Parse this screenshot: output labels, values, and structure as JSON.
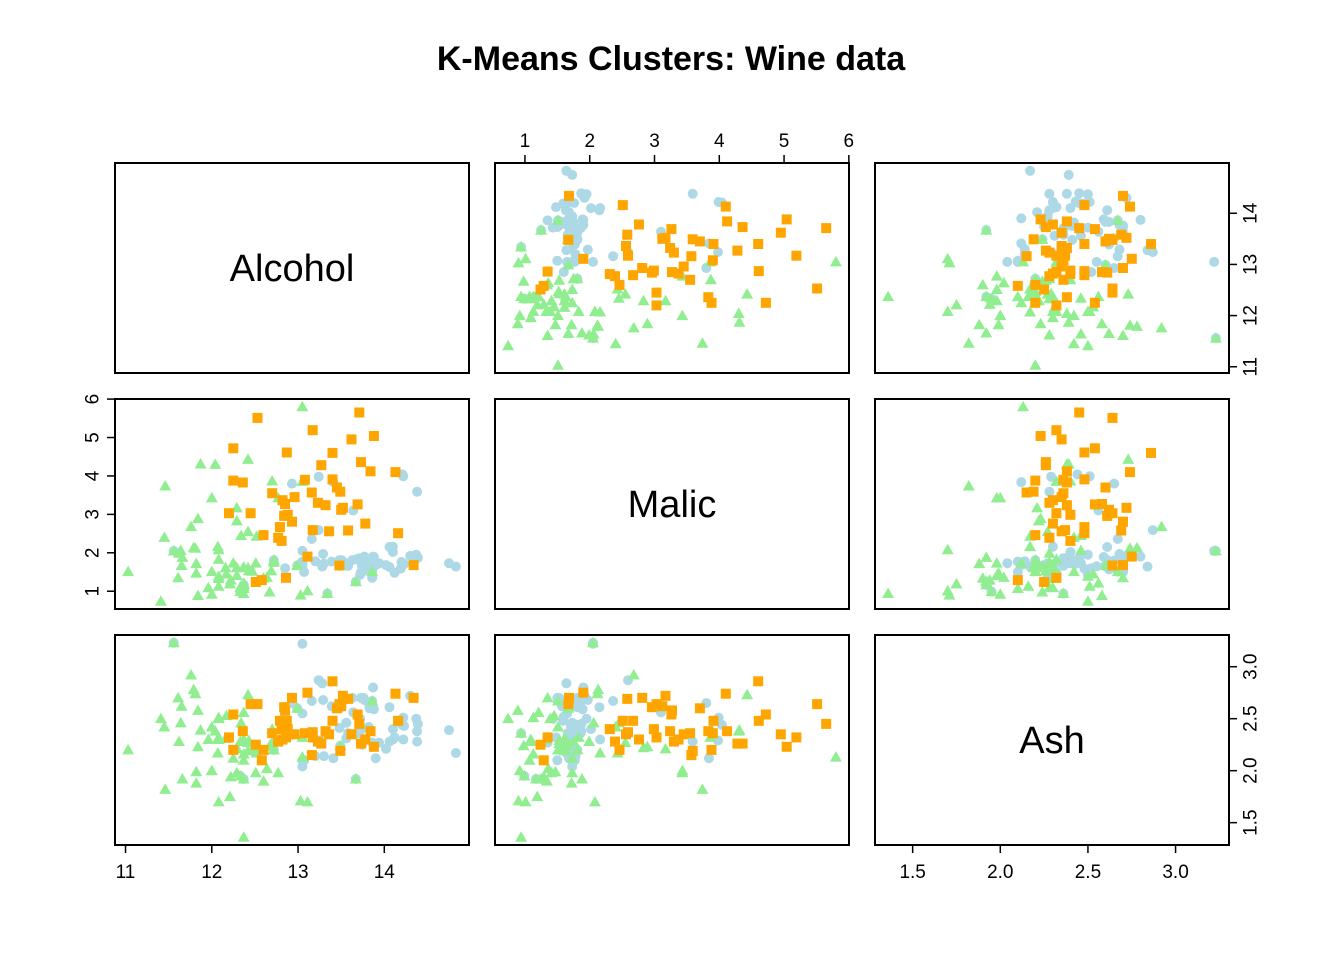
{
  "chart_data": {
    "type": "scatter",
    "title": "K-Means Clusters: Wine data",
    "variables": [
      "Alcohol",
      "Malic",
      "Ash"
    ],
    "ranges": {
      "Alcohol": [
        11.03,
        14.83
      ],
      "Malic": [
        0.74,
        5.8
      ],
      "Ash": [
        1.36,
        3.23
      ]
    },
    "ticks": {
      "Alcohol": [
        "11",
        "12",
        "13",
        "14"
      ],
      "Malic": [
        "1",
        "2",
        "3",
        "4",
        "5",
        "6"
      ],
      "Ash": [
        "1.5",
        "2.0",
        "2.5",
        "3.0"
      ]
    },
    "colors": {
      "cluster_1": "#add8e6",
      "cluster_2": "#90ee90",
      "cluster_3": "#ffa500"
    },
    "markers": {
      "cluster_1": "circle",
      "cluster_2": "triangle",
      "cluster_3": "square"
    },
    "clusters": [
      {
        "id": 1,
        "points": [
          [
            14.23,
            1.71,
            2.43
          ],
          [
            13.2,
            1.78,
            2.14
          ],
          [
            13.16,
            2.36,
            2.67
          ],
          [
            14.37,
            1.95,
            2.5
          ],
          [
            13.24,
            2.59,
            2.87
          ],
          [
            14.2,
            1.76,
            2.45
          ],
          [
            14.39,
            1.87,
            2.45
          ],
          [
            14.06,
            2.15,
            2.61
          ],
          [
            14.83,
            1.64,
            2.17
          ],
          [
            13.86,
            1.35,
            2.27
          ],
          [
            14.1,
            2.16,
            2.3
          ],
          [
            14.12,
            1.48,
            2.32
          ],
          [
            13.75,
            1.73,
            2.41
          ],
          [
            14.75,
            1.73,
            2.39
          ],
          [
            14.38,
            1.87,
            2.38
          ],
          [
            13.63,
            1.81,
            2.7
          ],
          [
            14.3,
            1.92,
            2.72
          ],
          [
            13.83,
            1.57,
            2.62
          ],
          [
            14.19,
            1.59,
            2.48
          ],
          [
            13.64,
            3.1,
            2.56
          ],
          [
            14.06,
            1.63,
            2.28
          ],
          [
            12.93,
            3.8,
            2.65
          ],
          [
            13.71,
            1.86,
            2.36
          ],
          [
            12.85,
            1.6,
            2.52
          ],
          [
            13.5,
            1.81,
            2.61
          ],
          [
            13.05,
            2.05,
            3.22
          ],
          [
            13.39,
            1.77,
            2.62
          ],
          [
            13.3,
            1.72,
            2.14
          ],
          [
            13.87,
            1.9,
            2.8
          ],
          [
            14.02,
            1.68,
            2.21
          ],
          [
            13.73,
            1.5,
            2.7
          ],
          [
            13.58,
            1.66,
            2.36
          ],
          [
            13.68,
            1.83,
            2.36
          ],
          [
            13.76,
            1.53,
            2.7
          ],
          [
            13.51,
            1.8,
            2.65
          ],
          [
            13.48,
            1.81,
            2.41
          ],
          [
            13.28,
            1.64,
            2.84
          ],
          [
            13.05,
            1.65,
            2.55
          ],
          [
            13.07,
            1.5,
            2.1
          ],
          [
            14.22,
            3.99,
            2.51
          ],
          [
            13.56,
            1.71,
            2.31
          ],
          [
            13.41,
            3.84,
            2.12
          ],
          [
            13.88,
            1.89,
            2.59
          ],
          [
            13.24,
            3.98,
            2.29
          ],
          [
            13.05,
            1.77,
            2.1
          ],
          [
            14.21,
            4.04,
            2.44
          ],
          [
            14.38,
            3.59,
            2.28
          ],
          [
            13.9,
            1.68,
            2.12
          ],
          [
            14.1,
            2.02,
            2.4
          ],
          [
            13.94,
            1.73,
            2.27
          ],
          [
            13.05,
            1.73,
            2.04
          ],
          [
            13.83,
            1.65,
            2.6
          ],
          [
            13.82,
            1.75,
            2.42
          ],
          [
            13.77,
            1.9,
            2.68
          ],
          [
            13.74,
            1.67,
            2.25
          ],
          [
            13.56,
            1.73,
            2.46
          ],
          [
            14.22,
            1.7,
            2.3
          ],
          [
            13.29,
            1.97,
            2.68
          ],
          [
            13.72,
            1.43,
            2.5
          ],
          [
            11.56,
            2.05,
            3.23
          ],
          [
            13.34,
            0.94,
            2.36
          ],
          [
            12.37,
            1.17,
            1.92
          ],
          [
            13.49,
            1.66,
            2.24
          ],
          [
            12.72,
            1.81,
            2.2
          ],
          [
            13.86,
            1.51,
            2.67
          ],
          [
            12.99,
            1.67,
            2.6
          ],
          [
            13.67,
            1.25,
            1.92
          ],
          [
            12.84,
            2.96,
            2.61
          ],
          [
            12.33,
            0.99,
            1.95
          ]
        ]
      },
      {
        "id": 2,
        "points": [
          [
            12.37,
            0.94,
            1.36
          ],
          [
            12.33,
            1.1,
            2.28
          ],
          [
            12.64,
            1.36,
            2.02
          ],
          [
            13.67,
            1.25,
            1.92
          ],
          [
            12.37,
            1.13,
            2.16
          ],
          [
            12.17,
            1.45,
            2.53
          ],
          [
            12.37,
            1.21,
            2.56
          ],
          [
            13.11,
            1.01,
            1.7
          ],
          [
            12.37,
            1.17,
            1.92
          ],
          [
            13.34,
            0.94,
            2.36
          ],
          [
            12.21,
            1.19,
            1.75
          ],
          [
            12.29,
            1.61,
            2.21
          ],
          [
            13.86,
            1.51,
            2.67
          ],
          [
            13.49,
            1.66,
            2.24
          ],
          [
            12.99,
            1.67,
            2.6
          ],
          [
            11.96,
            1.09,
            2.3
          ],
          [
            11.66,
            1.88,
            1.92
          ],
          [
            13.03,
            0.9,
            1.71
          ],
          [
            11.84,
            2.89,
            2.23
          ],
          [
            12.33,
            0.99,
            1.95
          ],
          [
            12.7,
            3.87,
            2.4
          ],
          [
            12,
            0.92,
            2
          ],
          [
            12.72,
            1.81,
            2.2
          ],
          [
            12.08,
            1.13,
            2.51
          ],
          [
            13.05,
            3.86,
            2.32
          ],
          [
            11.84,
            0.89,
            2.58
          ],
          [
            12.67,
            0.98,
            2.24
          ],
          [
            12.16,
            1.61,
            2.31
          ],
          [
            11.65,
            1.67,
            2.62
          ],
          [
            11.64,
            2.06,
            2.46
          ],
          [
            12.08,
            1.33,
            2.3
          ],
          [
            12.08,
            1.83,
            2.32
          ],
          [
            12,
            1.51,
            2.42
          ],
          [
            12.69,
            1.53,
            2.26
          ],
          [
            12.29,
            2.83,
            2.22
          ],
          [
            11.62,
            1.99,
            2.28
          ],
          [
            12.47,
            1.52,
            2.2
          ],
          [
            11.81,
            2.12,
            2.74
          ],
          [
            12.29,
            1.41,
            1.98
          ],
          [
            12.37,
            1.07,
            2.1
          ],
          [
            12.29,
            3.17,
            2.21
          ],
          [
            12.08,
            2.08,
            1.7
          ],
          [
            12.6,
            1.34,
            1.9
          ],
          [
            12.34,
            2.45,
            2.46
          ],
          [
            11.82,
            1.72,
            1.88
          ],
          [
            12.51,
            1.73,
            1.98
          ],
          [
            12.42,
            2.55,
            2.27
          ],
          [
            12.25,
            1.73,
            2.12
          ],
          [
            12.72,
            1.75,
            2.28
          ],
          [
            12.22,
            1.29,
            1.94
          ],
          [
            11.61,
            1.35,
            2.7
          ],
          [
            11.46,
            3.74,
            1.82
          ],
          [
            12.52,
            2.43,
            2.17
          ],
          [
            11.76,
            2.68,
            2.92
          ],
          [
            11.41,
            0.74,
            2.5
          ],
          [
            12.08,
            1.39,
            2.5
          ],
          [
            11.03,
            1.51,
            2.2
          ],
          [
            11.82,
            1.47,
            1.99
          ],
          [
            12.42,
            1.61,
            2.19
          ],
          [
            12.77,
            3.43,
            1.98
          ],
          [
            12,
            3.43,
            2
          ],
          [
            11.45,
            2.4,
            2.42
          ],
          [
            11.56,
            2.05,
            3.23
          ],
          [
            12.42,
            4.43,
            2.73
          ],
          [
            13.05,
            5.8,
            2.13
          ],
          [
            11.87,
            4.31,
            2.39
          ],
          [
            12.07,
            2.16,
            2.17
          ],
          [
            12.43,
            1.53,
            2.29
          ],
          [
            11.79,
            2.13,
            2.78
          ],
          [
            12.37,
            1.63,
            2.3
          ],
          [
            12.04,
            4.3,
            2.38
          ]
        ]
      },
      {
        "id": 3,
        "points": [
          [
            12.86,
            1.35,
            2.32
          ],
          [
            12.88,
            2.99,
            2.4
          ],
          [
            12.81,
            2.31,
            2.4
          ],
          [
            12.7,
            3.55,
            2.36
          ],
          [
            12.51,
            1.24,
            2.25
          ],
          [
            12.6,
            2.46,
            2.2
          ],
          [
            12.25,
            4.72,
            2.54
          ],
          [
            12.53,
            5.51,
            2.64
          ],
          [
            13.49,
            3.59,
            2.19
          ],
          [
            12.84,
            2.96,
            2.61
          ],
          [
            12.93,
            2.81,
            2.7
          ],
          [
            13.36,
            2.56,
            2.35
          ],
          [
            13.52,
            3.17,
            2.72
          ],
          [
            13.62,
            4.95,
            2.35
          ],
          [
            12.25,
            3.88,
            2.2
          ],
          [
            13.16,
            3.57,
            2.15
          ],
          [
            13.88,
            5.04,
            2.23
          ],
          [
            12.87,
            4.61,
            2.48
          ],
          [
            13.32,
            3.24,
            2.38
          ],
          [
            13.08,
            3.9,
            2.36
          ],
          [
            13.5,
            3.12,
            2.62
          ],
          [
            12.79,
            2.67,
            2.48
          ],
          [
            13.11,
            1.9,
            2.75
          ],
          [
            13.23,
            3.3,
            2.28
          ],
          [
            12.58,
            1.29,
            2.1
          ],
          [
            13.17,
            5.19,
            2.32
          ],
          [
            13.84,
            4.12,
            2.38
          ],
          [
            12.45,
            3.03,
            2.64
          ],
          [
            14.34,
            1.68,
            2.7
          ],
          [
            13.48,
            1.67,
            2.64
          ],
          [
            12.36,
            3.83,
            2.38
          ],
          [
            13.69,
            3.26,
            2.54
          ],
          [
            12.85,
            3.27,
            2.58
          ],
          [
            12.96,
            3.45,
            2.35
          ],
          [
            13.78,
            2.76,
            2.3
          ],
          [
            13.73,
            4.36,
            2.26
          ],
          [
            13.45,
            3.7,
            2.6
          ],
          [
            12.82,
            3.37,
            2.3
          ],
          [
            13.58,
            2.58,
            2.69
          ],
          [
            13.4,
            4.6,
            2.86
          ],
          [
            12.2,
            3.03,
            2.32
          ],
          [
            12.77,
            2.39,
            2.28
          ],
          [
            14.16,
            2.51,
            2.48
          ],
          [
            13.71,
            5.65,
            2.45
          ],
          [
            13.4,
            3.91,
            2.48
          ],
          [
            13.27,
            4.28,
            2.26
          ],
          [
            13.17,
            2.59,
            2.37
          ],
          [
            14.13,
            4.1,
            2.74
          ]
        ]
      }
    ]
  }
}
